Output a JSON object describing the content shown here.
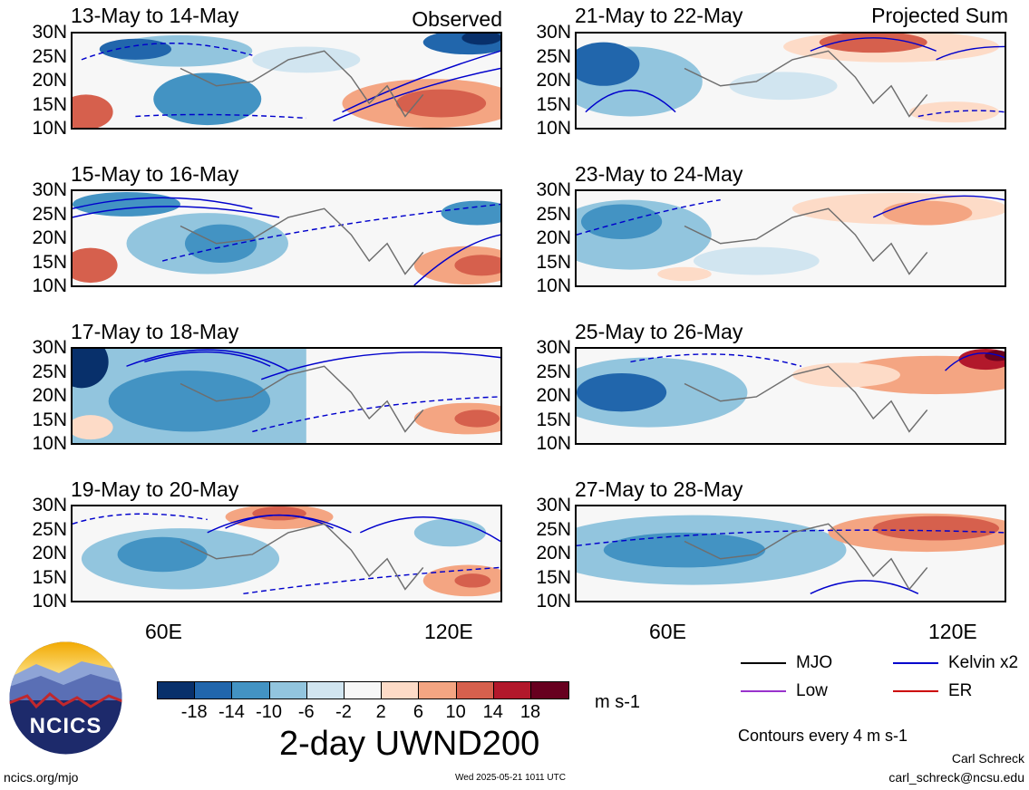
{
  "panels": [
    {
      "title": "13-May to 14-May",
      "tag": "Observed"
    },
    {
      "title": "15-May to 16-May",
      "tag": ""
    },
    {
      "title": "17-May to 18-May",
      "tag": ""
    },
    {
      "title": "19-May to 20-May",
      "tag": ""
    },
    {
      "title": "21-May to 22-May",
      "tag": "Projected Sum"
    },
    {
      "title": "23-May to 24-May",
      "tag": ""
    },
    {
      "title": "25-May to 26-May",
      "tag": ""
    },
    {
      "title": "27-May to 28-May",
      "tag": ""
    }
  ],
  "lat_labels": [
    "30N",
    "25N",
    "20N",
    "15N",
    "10N"
  ],
  "lon_labels": [
    "60E",
    "120E"
  ],
  "colorbar": {
    "colors": [
      "#08306b",
      "#2166ac",
      "#4393c3",
      "#92c5de",
      "#d1e5f0",
      "#f7f7f7",
      "#fddbc7",
      "#f4a582",
      "#d6604d",
      "#b2182b",
      "#67001f"
    ],
    "labels": [
      "-18",
      "-14",
      "-10",
      "-6",
      "-2",
      "2",
      "6",
      "10",
      "14",
      "18"
    ],
    "units": "m s-1"
  },
  "main_title": "2-day UWND200",
  "legend": {
    "items": [
      {
        "label": "MJO",
        "color": "#000000"
      },
      {
        "label": "Kelvin x2",
        "color": "#0000cc"
      },
      {
        "label": "Low",
        "color": "#9933cc"
      },
      {
        "label": "ER",
        "color": "#cc0000"
      }
    ],
    "contours_note": "Contours every 4 m s-1"
  },
  "logo": {
    "text": "NCICS"
  },
  "footer": {
    "url": "ncics.org/mjo",
    "timestamp": "Wed 2025-05-21 1011 UTC",
    "author": "Carl Schreck",
    "email": "carl_schreck@ncsu.edu"
  },
  "colors": {
    "blue_dark": "#08306b",
    "blue": "#4393c3",
    "blue_light": "#d1e5f0",
    "red_light": "#fddbc7",
    "red": "#d6604d",
    "coast": "#6e6e6e",
    "contour_blue": "#0000cc"
  }
}
